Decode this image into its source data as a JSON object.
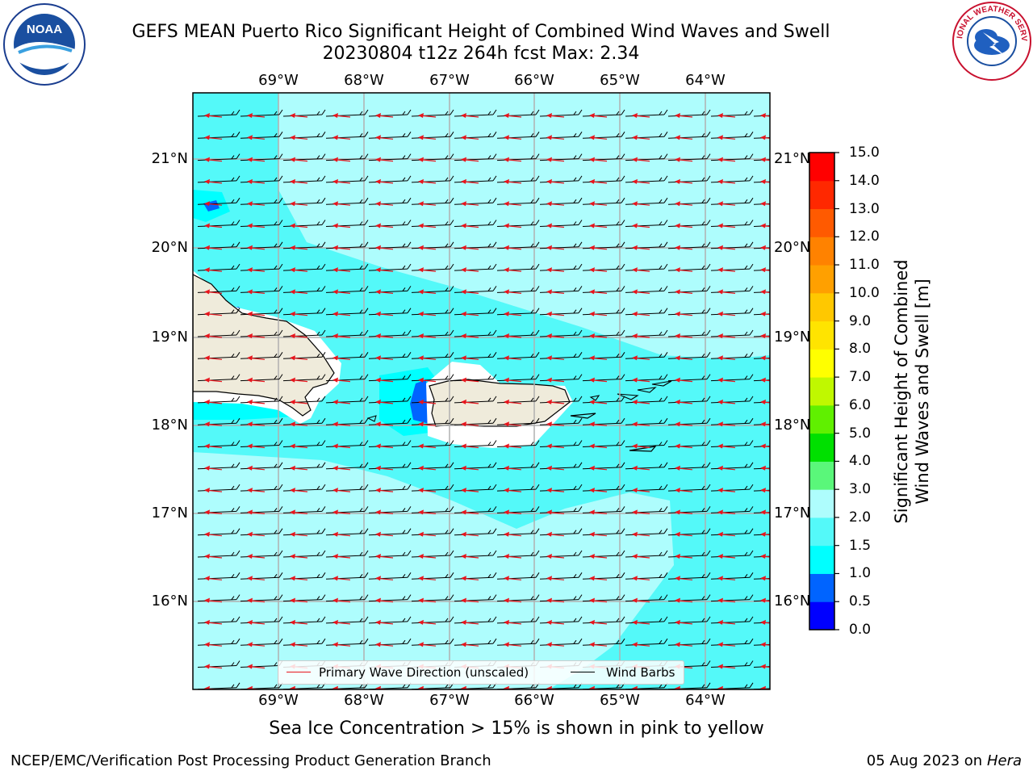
{
  "title": {
    "line1": "GEFS MEAN Puerto Rico Significant Height of Combined Wind Waves and Swell",
    "line2": "20230804 t12z 264h fcst   Max: 2.34"
  },
  "map": {
    "longitude_labels": [
      "69°W",
      "68°W",
      "67°W",
      "66°W",
      "65°W",
      "64°W"
    ],
    "latitude_labels": [
      "21°N",
      "20°N",
      "19°N",
      "18°N",
      "17°N",
      "16°N"
    ],
    "colors": {
      "sea_light": "#aefdfd",
      "sea_mid": "#54f9f9",
      "sea_strong": "#00ffff",
      "land": "#efebdb",
      "wind_barbs": "#000000",
      "wave_direction": "#e8141c"
    },
    "legend": {
      "wave_direction": "Primary Wave Direction (unscaled)",
      "wind_barbs": "Wind Barbs"
    }
  },
  "colorbar": {
    "label_line1": "Significant Height of Combined",
    "label_line2": "Wind Waves and Swell [m]",
    "ticks": [
      "0.0",
      "0.5",
      "1.0",
      "1.5",
      "2.0",
      "3.0",
      "4.0",
      "5.0",
      "6.0",
      "7.0",
      "8.0",
      "9.0",
      "10.0",
      "11.0",
      "12.0",
      "13.0",
      "14.0",
      "15.0"
    ],
    "colors": [
      "#0000ff",
      "#0064ff",
      "#00ffff",
      "#54f9f9",
      "#aefdfd",
      "#5af77a",
      "#00e000",
      "#60f000",
      "#c0f800",
      "#ffff00",
      "#ffe400",
      "#ffc800",
      "#ffa000",
      "#ff8200",
      "#ff5a00",
      "#ff2800",
      "#ff0000"
    ]
  },
  "logos": {
    "nws_ring_text": "NATIONAL WEATHER SERVICE",
    "noaa_text": "NOAA"
  },
  "sea_ice_note": "Sea Ice Concentration > 15% is shown in pink to yellow",
  "footer": {
    "left": "NCEP/EMC/Verification Post Processing Product Generation Branch",
    "right_date": "05 Aug 2023 on",
    "right_host": "Hera"
  }
}
